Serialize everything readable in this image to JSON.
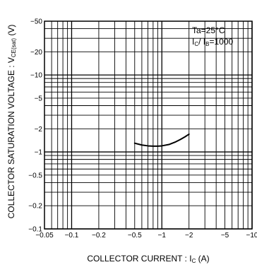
{
  "chart_data": {
    "type": "line",
    "xscale": "log",
    "yscale": "log",
    "x_tick_labels": [
      "−0.05",
      "−0.1",
      "−0.2",
      "−0.5",
      "−1",
      "−2",
      "−5",
      "−10"
    ],
    "x_tick_values": [
      0.05,
      0.1,
      0.2,
      0.5,
      1,
      2,
      5,
      10
    ],
    "y_tick_labels": [
      "−0.1",
      "−0.2",
      "−0.5",
      "−1",
      "−2",
      "−5",
      "−10",
      "−20",
      "−50"
    ],
    "y_tick_values": [
      0.1,
      0.2,
      0.5,
      1,
      2,
      5,
      10,
      20,
      50
    ],
    "xlim": [
      0.05,
      10
    ],
    "ylim": [
      0.1,
      50
    ],
    "grid": true,
    "xlabel": {
      "main": "COLLECTOR CURRENT : I",
      "sub": "C",
      "unit": " (A)"
    },
    "ylabel": {
      "main": "COLLECTOR SATURATION VOLTAGE : V",
      "sub": "CE(sat)",
      "unit": " (V)"
    },
    "legend": {
      "line1": "Ta=25°C",
      "line2_a": "I",
      "line2_a_sub": "C",
      "line2_mid": "/ I",
      "line2_b_sub": "B",
      "line2_end": "=1000",
      "placement": "top-right"
    },
    "series": [
      {
        "x": [
          0.5,
          0.6,
          0.7,
          0.8,
          0.9,
          1.0,
          1.2,
          1.4,
          1.6,
          1.8,
          2.0
        ],
        "y": [
          1.3,
          1.23,
          1.2,
          1.19,
          1.19,
          1.2,
          1.25,
          1.34,
          1.45,
          1.57,
          1.7
        ]
      }
    ]
  }
}
